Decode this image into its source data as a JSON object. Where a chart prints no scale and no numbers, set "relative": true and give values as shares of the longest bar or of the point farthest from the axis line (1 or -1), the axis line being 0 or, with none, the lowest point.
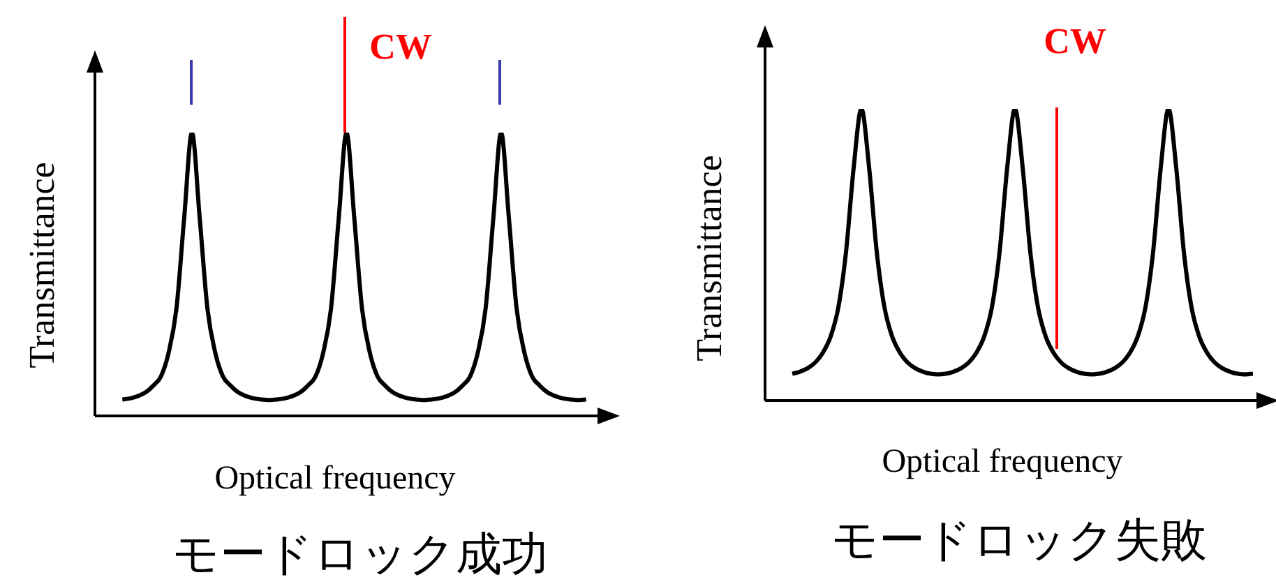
{
  "chart_data": [
    {
      "type": "line",
      "title": "モードロック成功",
      "xlabel": "Optical frequency",
      "ylabel": "Transmittance",
      "relative": true,
      "annotations": [
        {
          "text": "CW"
        }
      ],
      "categories": [
        null,
        null,
        null,
        null,
        null,
        null,
        null,
        null,
        null,
        null,
        null,
        null,
        null,
        null,
        null,
        null,
        null,
        null,
        null,
        null,
        null,
        null,
        null,
        null,
        null,
        null,
        null,
        null,
        null,
        null,
        null,
        null,
        null,
        null,
        null,
        null,
        null,
        null,
        null,
        null,
        null,
        null,
        null,
        null,
        null,
        null,
        null,
        null,
        null,
        null,
        null,
        null,
        null,
        null,
        null,
        null,
        null,
        null,
        null,
        null,
        null
      ],
      "series": [
        {
          "color": "#000000",
          "values": [
            0.058,
            0.062,
            0.07,
            0.083,
            0.107,
            0.14,
            0.225,
            0.38,
            0.7,
            1,
            0.7,
            0.38,
            0.225,
            0.14,
            0.107,
            0.083,
            0.07,
            0.062,
            0.058,
            0.056,
            0.058,
            0.062,
            0.07,
            0.083,
            0.107,
            0.14,
            0.225,
            0.38,
            0.7,
            1,
            0.7,
            0.38,
            0.225,
            0.14,
            0.107,
            0.083,
            0.07,
            0.062,
            0.058,
            0.056,
            0.058,
            0.062,
            0.07,
            0.083,
            0.107,
            0.14,
            0.225,
            0.38,
            0.7,
            1,
            0.7,
            0.38,
            0.225,
            0.14,
            0.107,
            0.083,
            0.07,
            0.062,
            0.058,
            0.056,
            0.058
          ]
        }
      ]
    },
    {
      "type": "line",
      "title": "モードロック失敗",
      "xlabel": "Optical frequency",
      "ylabel": "Transmittance",
      "relative": true,
      "annotations": [
        {
          "text": "CW"
        }
      ],
      "categories": [
        null,
        null,
        null,
        null,
        null,
        null,
        null,
        null,
        null,
        null,
        null,
        null,
        null,
        null,
        null,
        null,
        null,
        null,
        null,
        null,
        null,
        null,
        null,
        null,
        null,
        null,
        null,
        null,
        null,
        null,
        null,
        null,
        null,
        null,
        null,
        null,
        null,
        null,
        null,
        null,
        null,
        null,
        null,
        null,
        null,
        null,
        null,
        null,
        null,
        null,
        null,
        null,
        null,
        null,
        null,
        null,
        null,
        null,
        null,
        null,
        null
      ],
      "series": [
        {
          "color": "#000000",
          "values": [
            0.092,
            0.099,
            0.111,
            0.131,
            0.165,
            0.22,
            0.32,
            0.51,
            0.8,
            1,
            0.8,
            0.51,
            0.32,
            0.22,
            0.165,
            0.131,
            0.111,
            0.099,
            0.092,
            0.09,
            0.092,
            0.099,
            0.111,
            0.131,
            0.165,
            0.22,
            0.32,
            0.51,
            0.8,
            1,
            0.8,
            0.51,
            0.32,
            0.22,
            0.165,
            0.131,
            0.111,
            0.099,
            0.092,
            0.09,
            0.092,
            0.099,
            0.111,
            0.131,
            0.165,
            0.22,
            0.32,
            0.51,
            0.8,
            1,
            0.8,
            0.51,
            0.32,
            0.22,
            0.165,
            0.131,
            0.111,
            0.099,
            0.092,
            0.09,
            0.092
          ]
        }
      ]
    }
  ]
}
